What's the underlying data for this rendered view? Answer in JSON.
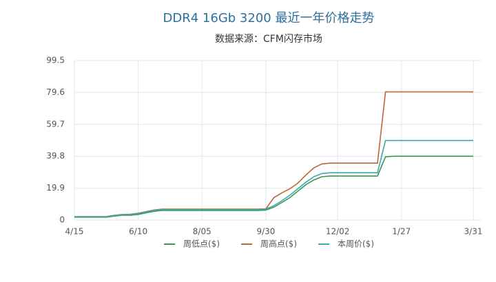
{
  "chart_data": {
    "type": "line",
    "title": "DDR4 16Gb 3200 最近一年价格走势",
    "subtitle": "数据来源：CFM闪存市场",
    "categories": [
      "4/15",
      null,
      null,
      null,
      null,
      null,
      null,
      null,
      "6/10",
      null,
      null,
      null,
      null,
      null,
      null,
      null,
      "8/05",
      null,
      null,
      null,
      null,
      null,
      null,
      null,
      "9/30",
      null,
      null,
      null,
      null,
      null,
      null,
      null,
      null,
      "12/02",
      null,
      null,
      null,
      null,
      null,
      null,
      null,
      "1/27",
      null,
      null,
      null,
      null,
      null,
      null,
      null,
      null,
      "3/31"
    ],
    "ylim": [
      0,
      99.5
    ],
    "yticks": [
      0,
      19.9,
      39.8,
      59.7,
      79.6,
      99.5
    ],
    "grid": true,
    "legend": "bottom",
    "series": [
      {
        "name": "周低点($)",
        "color": "#3a9a4c",
        "values": [
          1.8,
          1.8,
          1.8,
          1.8,
          1.8,
          2.5,
          3,
          3,
          3.5,
          4.5,
          5.5,
          6,
          6,
          6,
          6,
          6,
          6,
          6,
          6,
          6,
          6,
          6,
          6,
          6,
          6.2,
          8,
          11,
          14,
          18,
          22,
          25,
          27,
          27.5,
          27.5,
          27.5,
          27.5,
          27.5,
          27.5,
          27.5,
          39.5,
          39.8,
          39.8,
          39.8,
          39.8,
          39.8,
          39.8,
          39.8,
          39.8,
          39.8,
          39.8,
          39.8
        ]
      },
      {
        "name": "周高点($)",
        "color": "#c0643a",
        "values": [
          2.2,
          2.2,
          2.2,
          2.2,
          2.2,
          3,
          3.5,
          3.6,
          4.3,
          5.3,
          6.3,
          6.8,
          6.8,
          6.8,
          6.8,
          6.8,
          6.8,
          6.8,
          6.8,
          6.8,
          6.8,
          6.8,
          6.8,
          6.8,
          7,
          14,
          17,
          19.5,
          23,
          28,
          32.5,
          35,
          35.5,
          35.5,
          35.5,
          35.5,
          35.5,
          35.5,
          35.5,
          80,
          80,
          80,
          80,
          80,
          80,
          80,
          80,
          80,
          80,
          80,
          80
        ]
      },
      {
        "name": "本周价($)",
        "color": "#3aa8b0",
        "values": [
          2,
          2,
          2,
          2,
          2,
          2.8,
          3.3,
          3.4,
          4,
          5,
          6,
          6.5,
          6.5,
          6.5,
          6.5,
          6.5,
          6.5,
          6.5,
          6.5,
          6.5,
          6.5,
          6.5,
          6.5,
          6.5,
          6.8,
          9,
          12,
          15.5,
          19.5,
          23.5,
          27,
          29,
          29.5,
          29.5,
          29.5,
          29.5,
          29.5,
          29.5,
          29.5,
          49.6,
          49.6,
          49.6,
          49.6,
          49.6,
          49.6,
          49.6,
          49.6,
          49.6,
          49.6,
          49.6,
          49.6
        ]
      }
    ]
  }
}
